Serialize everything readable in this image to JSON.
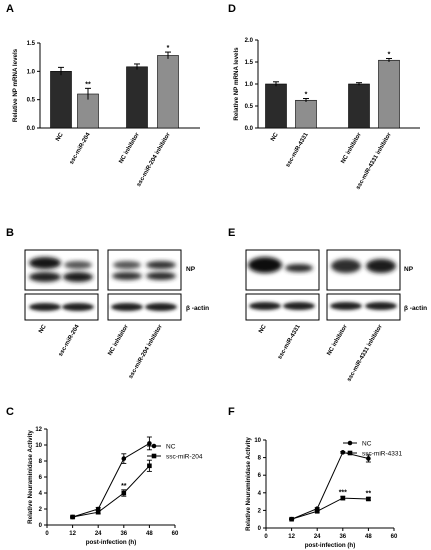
{
  "panels": {
    "A": "A",
    "B": "B",
    "C": "C",
    "D": "D",
    "E": "E",
    "F": "F"
  },
  "chart_data": [
    {
      "panel": "A",
      "type": "bar",
      "ylabel": "Relative NP mRNA levels",
      "ylim": [
        0,
        1.5
      ],
      "yticks": [
        "0.0",
        "0.5",
        "1.0",
        "1.5"
      ],
      "categories": [
        "NC",
        "ssc-miR-204",
        "NC inhibitor",
        "ssc-miR-204 inhibitor"
      ],
      "values": [
        1.0,
        0.6,
        1.08,
        1.28
      ],
      "errors": [
        0.07,
        0.1,
        0.05,
        0.06
      ],
      "annotations": [
        "",
        "**",
        "",
        "*"
      ],
      "colors": [
        "#2b2b2b",
        "#8e8e8e",
        "#2b2b2b",
        "#8e8e8e"
      ]
    },
    {
      "panel": "D",
      "type": "bar",
      "ylabel": "Relative NP mRNA levels",
      "ylim": [
        0,
        2.0
      ],
      "yticks": [
        "0.0",
        "0.5",
        "1.0",
        "1.5",
        "2.0"
      ],
      "categories": [
        "NC",
        "ssc-miR-4331",
        "NC inhibitor",
        "ssc-miR-4331 inhibitor"
      ],
      "values": [
        1.0,
        0.63,
        1.0,
        1.54
      ],
      "errors": [
        0.05,
        0.04,
        0.03,
        0.04
      ],
      "annotations": [
        "",
        "*",
        "",
        "*"
      ],
      "colors": [
        "#2b2b2b",
        "#8e8e8e",
        "#2b2b2b",
        "#8e8e8e"
      ]
    },
    {
      "panel": "C",
      "type": "line",
      "xlabel": "post-infection (h)",
      "ylabel": "Relative Neuraminidase Activity",
      "xlim": [
        0,
        60
      ],
      "ylim": [
        0,
        12
      ],
      "xticks": [
        "0",
        "12",
        "24",
        "36",
        "48",
        "60"
      ],
      "yticks": [
        "0",
        "2",
        "4",
        "6",
        "8",
        "10",
        "12"
      ],
      "x": [
        12,
        24,
        36,
        48
      ],
      "series": [
        {
          "name": "NC",
          "marker": "circle",
          "values": [
            1.0,
            2.0,
            8.3,
            10.2
          ],
          "errors": [
            0.1,
            0.2,
            0.6,
            0.8
          ]
        },
        {
          "name": "ssc-miR-204",
          "marker": "square",
          "values": [
            1.0,
            1.6,
            4.0,
            7.4
          ],
          "errors": [
            0.1,
            0.2,
            0.4,
            0.7
          ]
        }
      ],
      "annotations": [
        {
          "x": 36,
          "text": "**"
        }
      ],
      "legend": "top-right"
    },
    {
      "panel": "F",
      "type": "line",
      "xlabel": "post-infection (h)",
      "ylabel": "Relative Neuraminidase Activity",
      "xlim": [
        0,
        60
      ],
      "ylim": [
        0,
        10
      ],
      "xticks": [
        "0",
        "12",
        "24",
        "36",
        "48",
        "60"
      ],
      "yticks": [
        "0",
        "2",
        "4",
        "6",
        "8",
        "10"
      ],
      "x": [
        12,
        24,
        36,
        48
      ],
      "series": [
        {
          "name": "NC",
          "marker": "circle",
          "values": [
            1.0,
            2.2,
            8.6,
            7.9
          ],
          "errors": [
            0.05,
            0.1,
            0.1,
            0.4
          ]
        },
        {
          "name": "ssc-miR-4331",
          "marker": "square",
          "values": [
            1.0,
            1.9,
            3.4,
            3.3
          ],
          "errors": [
            0.05,
            0.1,
            0.2,
            0.15
          ]
        }
      ],
      "annotations": [
        {
          "x": 36,
          "text": "***"
        },
        {
          "x": 48,
          "text": "**"
        }
      ],
      "legend": "top-right"
    }
  ],
  "blots": {
    "B": {
      "np_label": "NP",
      "actin_label": "β -actin",
      "lanes": [
        "NC",
        "ssc-miR-204",
        "NC inhibitor",
        "ssc-miR-204 inhibitor"
      ]
    },
    "E": {
      "np_label": "NP",
      "actin_label": "β -actin",
      "lanes": [
        "NC",
        "ssc-miR-4331",
        "NC inhibitor",
        "ssc-miR-4331 inhibitor"
      ]
    }
  }
}
